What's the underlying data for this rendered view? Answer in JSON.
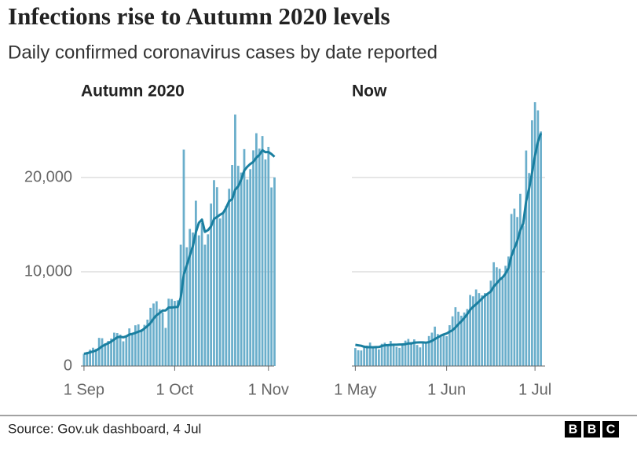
{
  "title": "Infections rise to Autumn 2020 levels",
  "subtitle": "Daily confirmed coronavirus cases by date reported",
  "source": "Source: Gov.uk dashboard, 4 Jul",
  "logo": [
    "B",
    "B",
    "C"
  ],
  "chart_data": [
    {
      "type": "bar_line",
      "title": "Autumn 2020",
      "categories": [
        "1 Sep",
        null,
        null,
        null,
        null,
        null,
        null,
        null,
        null,
        null,
        null,
        null,
        null,
        null,
        null,
        null,
        null,
        null,
        null,
        null,
        null,
        null,
        null,
        null,
        null,
        null,
        null,
        null,
        null,
        null,
        "1 Oct",
        null,
        null,
        null,
        null,
        null,
        null,
        null,
        null,
        null,
        null,
        null,
        null,
        null,
        null,
        null,
        null,
        null,
        null,
        null,
        null,
        null,
        null,
        null,
        null,
        null,
        null,
        null,
        null,
        null,
        null,
        "1 Nov",
        null,
        null
      ],
      "series": [
        {
          "type": "bar",
          "color": "#6aaecb",
          "values": [
            1295,
            1508,
            1735,
            1940,
            1813,
            2988,
            2948,
            2420,
            2659,
            2919,
            3539,
            3497,
            3330,
            2621,
            3105,
            3991,
            3395,
            4322,
            4422,
            3899,
            4368,
            4926,
            6178,
            6634,
            6874,
            6042,
            5693,
            4044,
            7143,
            7108,
            6914,
            6968,
            12872,
            22961,
            12594,
            14542,
            14162,
            17540,
            13864,
            15166,
            12872,
            13972,
            17234,
            19724,
            18980,
            15650,
            16171,
            16982,
            18804,
            21331,
            26688,
            21242,
            20530,
            23012,
            19790,
            20890,
            22885,
            24701,
            23065,
            24405,
            21915,
            23254,
            18950,
            20018
          ]
        },
        {
          "type": "line",
          "color": "#1a7fa0",
          "values": [
            1300,
            1350,
            1450,
            1550,
            1650,
            1850,
            2100,
            2270,
            2420,
            2590,
            2810,
            3050,
            3100,
            3050,
            3150,
            3340,
            3410,
            3520,
            3650,
            3730,
            3980,
            4240,
            4560,
            5030,
            5390,
            5630,
            5880,
            5900,
            6210,
            6210,
            6250,
            6270,
            7250,
            9720,
            10680,
            11740,
            12710,
            14200,
            15190,
            15530,
            14230,
            14420,
            14810,
            15600,
            15810,
            16060,
            16230,
            16790,
            17490,
            17710,
            18700,
            19070,
            19770,
            20740,
            21140,
            21440,
            21660,
            22120,
            22400,
            22900,
            22690,
            22710,
            22490,
            22200
          ]
        }
      ],
      "ylim": [
        0,
        28000
      ],
      "yticks": [
        0,
        {
          "value": 10000,
          "label": "10,000"
        },
        {
          "value": 20000,
          "label": "20,000"
        }
      ],
      "grid": true
    },
    {
      "type": "bar_line",
      "title": "Now",
      "categories": [
        "1 May",
        null,
        null,
        null,
        null,
        null,
        null,
        null,
        null,
        null,
        null,
        null,
        null,
        null,
        null,
        null,
        null,
        null,
        null,
        null,
        null,
        null,
        null,
        null,
        null,
        null,
        null,
        null,
        null,
        null,
        null,
        "1 Jun",
        null,
        null,
        null,
        null,
        null,
        null,
        null,
        null,
        null,
        null,
        null,
        null,
        null,
        null,
        null,
        null,
        null,
        null,
        null,
        null,
        null,
        null,
        null,
        null,
        null,
        null,
        null,
        null,
        null,
        "1 Jul",
        null,
        null
      ],
      "series": [
        {
          "type": "bar",
          "color": "#6aaecb",
          "values": [
            1907,
            1671,
            1649,
            1946,
            2166,
            2490,
            2047,
            2047,
            1770,
            2357,
            2474,
            2284,
            2657,
            2193,
            2027,
            1926,
            2412,
            2696,
            2874,
            2550,
            2829,
            2235,
            1979,
            2439,
            2493,
            3180,
            3542,
            4182,
            3398,
            3240,
            3383,
            3165,
            4330,
            5274,
            6238,
            5765,
            5341,
            5683,
            6048,
            7540,
            7393,
            8125,
            7738,
            7490,
            7742,
            7673,
            9055,
            11007,
            10476,
            10321,
            9284,
            10633,
            11625,
            16135,
            16703,
            15810,
            18270,
            14876,
            22868,
            20479,
            26068,
            27989,
            27125,
            24885
          ]
        },
        {
          "type": "line",
          "color": "#1a7fa0",
          "values": [
            2250,
            2200,
            2150,
            2050,
            2000,
            2000,
            1990,
            2010,
            2020,
            2120,
            2200,
            2220,
            2240,
            2260,
            2260,
            2280,
            2290,
            2320,
            2400,
            2390,
            2480,
            2500,
            2510,
            2510,
            2480,
            2530,
            2670,
            2860,
            3040,
            3220,
            3350,
            3450,
            3640,
            3800,
            4090,
            4440,
            4740,
            5100,
            5510,
            5970,
            6280,
            6550,
            6850,
            7150,
            7440,
            7680,
            7910,
            8440,
            8780,
            9150,
            9400,
            9810,
            10380,
            11680,
            12500,
            13260,
            14400,
            15120,
            17500,
            18800,
            20500,
            22300,
            23800,
            24700
          ]
        }
      ],
      "ylim": [
        0,
        28000
      ],
      "yticks": [
        0,
        10000,
        20000
      ],
      "grid": true
    }
  ]
}
